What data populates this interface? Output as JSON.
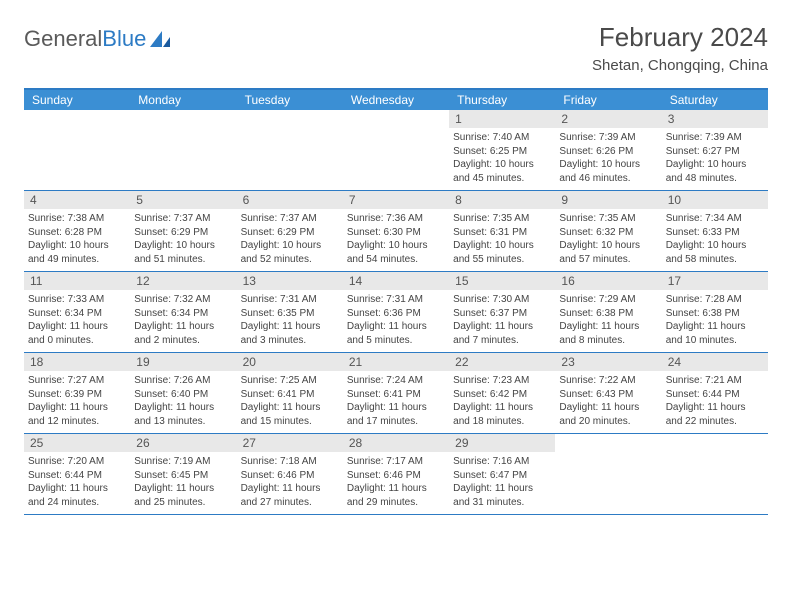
{
  "logo": {
    "text1": "General",
    "text2": "Blue"
  },
  "title": "February 2024",
  "location": "Shetan, Chongqing, China",
  "colors": {
    "header_bg": "#3b8fd4",
    "border": "#2d7bc4",
    "daynum_bg": "#e8e8e8",
    "text": "#444444"
  },
  "dayNames": [
    "Sunday",
    "Monday",
    "Tuesday",
    "Wednesday",
    "Thursday",
    "Friday",
    "Saturday"
  ],
  "weeks": [
    [
      {
        "n": "",
        "sr": "",
        "ss": "",
        "dl": ""
      },
      {
        "n": "",
        "sr": "",
        "ss": "",
        "dl": ""
      },
      {
        "n": "",
        "sr": "",
        "ss": "",
        "dl": ""
      },
      {
        "n": "",
        "sr": "",
        "ss": "",
        "dl": ""
      },
      {
        "n": "1",
        "sr": "Sunrise: 7:40 AM",
        "ss": "Sunset: 6:25 PM",
        "dl": "Daylight: 10 hours and 45 minutes."
      },
      {
        "n": "2",
        "sr": "Sunrise: 7:39 AM",
        "ss": "Sunset: 6:26 PM",
        "dl": "Daylight: 10 hours and 46 minutes."
      },
      {
        "n": "3",
        "sr": "Sunrise: 7:39 AM",
        "ss": "Sunset: 6:27 PM",
        "dl": "Daylight: 10 hours and 48 minutes."
      }
    ],
    [
      {
        "n": "4",
        "sr": "Sunrise: 7:38 AM",
        "ss": "Sunset: 6:28 PM",
        "dl": "Daylight: 10 hours and 49 minutes."
      },
      {
        "n": "5",
        "sr": "Sunrise: 7:37 AM",
        "ss": "Sunset: 6:29 PM",
        "dl": "Daylight: 10 hours and 51 minutes."
      },
      {
        "n": "6",
        "sr": "Sunrise: 7:37 AM",
        "ss": "Sunset: 6:29 PM",
        "dl": "Daylight: 10 hours and 52 minutes."
      },
      {
        "n": "7",
        "sr": "Sunrise: 7:36 AM",
        "ss": "Sunset: 6:30 PM",
        "dl": "Daylight: 10 hours and 54 minutes."
      },
      {
        "n": "8",
        "sr": "Sunrise: 7:35 AM",
        "ss": "Sunset: 6:31 PM",
        "dl": "Daylight: 10 hours and 55 minutes."
      },
      {
        "n": "9",
        "sr": "Sunrise: 7:35 AM",
        "ss": "Sunset: 6:32 PM",
        "dl": "Daylight: 10 hours and 57 minutes."
      },
      {
        "n": "10",
        "sr": "Sunrise: 7:34 AM",
        "ss": "Sunset: 6:33 PM",
        "dl": "Daylight: 10 hours and 58 minutes."
      }
    ],
    [
      {
        "n": "11",
        "sr": "Sunrise: 7:33 AM",
        "ss": "Sunset: 6:34 PM",
        "dl": "Daylight: 11 hours and 0 minutes."
      },
      {
        "n": "12",
        "sr": "Sunrise: 7:32 AM",
        "ss": "Sunset: 6:34 PM",
        "dl": "Daylight: 11 hours and 2 minutes."
      },
      {
        "n": "13",
        "sr": "Sunrise: 7:31 AM",
        "ss": "Sunset: 6:35 PM",
        "dl": "Daylight: 11 hours and 3 minutes."
      },
      {
        "n": "14",
        "sr": "Sunrise: 7:31 AM",
        "ss": "Sunset: 6:36 PM",
        "dl": "Daylight: 11 hours and 5 minutes."
      },
      {
        "n": "15",
        "sr": "Sunrise: 7:30 AM",
        "ss": "Sunset: 6:37 PM",
        "dl": "Daylight: 11 hours and 7 minutes."
      },
      {
        "n": "16",
        "sr": "Sunrise: 7:29 AM",
        "ss": "Sunset: 6:38 PM",
        "dl": "Daylight: 11 hours and 8 minutes."
      },
      {
        "n": "17",
        "sr": "Sunrise: 7:28 AM",
        "ss": "Sunset: 6:38 PM",
        "dl": "Daylight: 11 hours and 10 minutes."
      }
    ],
    [
      {
        "n": "18",
        "sr": "Sunrise: 7:27 AM",
        "ss": "Sunset: 6:39 PM",
        "dl": "Daylight: 11 hours and 12 minutes."
      },
      {
        "n": "19",
        "sr": "Sunrise: 7:26 AM",
        "ss": "Sunset: 6:40 PM",
        "dl": "Daylight: 11 hours and 13 minutes."
      },
      {
        "n": "20",
        "sr": "Sunrise: 7:25 AM",
        "ss": "Sunset: 6:41 PM",
        "dl": "Daylight: 11 hours and 15 minutes."
      },
      {
        "n": "21",
        "sr": "Sunrise: 7:24 AM",
        "ss": "Sunset: 6:41 PM",
        "dl": "Daylight: 11 hours and 17 minutes."
      },
      {
        "n": "22",
        "sr": "Sunrise: 7:23 AM",
        "ss": "Sunset: 6:42 PM",
        "dl": "Daylight: 11 hours and 18 minutes."
      },
      {
        "n": "23",
        "sr": "Sunrise: 7:22 AM",
        "ss": "Sunset: 6:43 PM",
        "dl": "Daylight: 11 hours and 20 minutes."
      },
      {
        "n": "24",
        "sr": "Sunrise: 7:21 AM",
        "ss": "Sunset: 6:44 PM",
        "dl": "Daylight: 11 hours and 22 minutes."
      }
    ],
    [
      {
        "n": "25",
        "sr": "Sunrise: 7:20 AM",
        "ss": "Sunset: 6:44 PM",
        "dl": "Daylight: 11 hours and 24 minutes."
      },
      {
        "n": "26",
        "sr": "Sunrise: 7:19 AM",
        "ss": "Sunset: 6:45 PM",
        "dl": "Daylight: 11 hours and 25 minutes."
      },
      {
        "n": "27",
        "sr": "Sunrise: 7:18 AM",
        "ss": "Sunset: 6:46 PM",
        "dl": "Daylight: 11 hours and 27 minutes."
      },
      {
        "n": "28",
        "sr": "Sunrise: 7:17 AM",
        "ss": "Sunset: 6:46 PM",
        "dl": "Daylight: 11 hours and 29 minutes."
      },
      {
        "n": "29",
        "sr": "Sunrise: 7:16 AM",
        "ss": "Sunset: 6:47 PM",
        "dl": "Daylight: 11 hours and 31 minutes."
      },
      {
        "n": "",
        "sr": "",
        "ss": "",
        "dl": ""
      },
      {
        "n": "",
        "sr": "",
        "ss": "",
        "dl": ""
      }
    ]
  ]
}
